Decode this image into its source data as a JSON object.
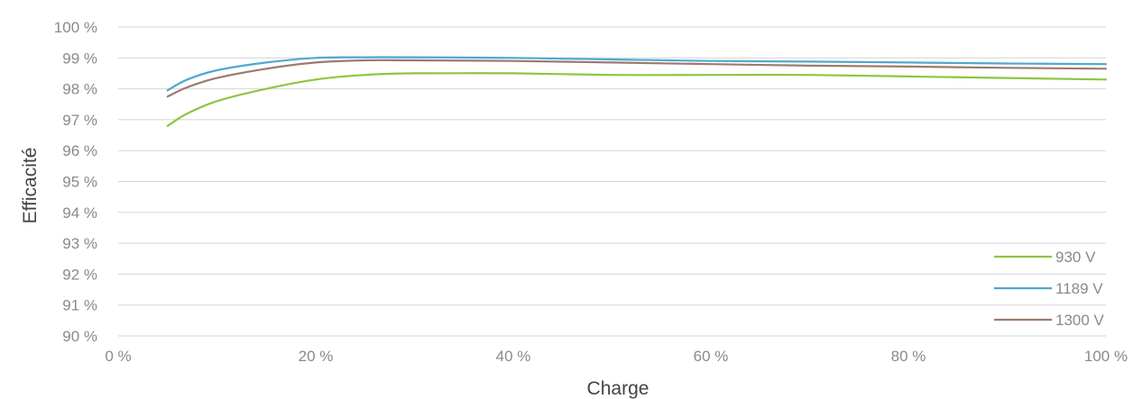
{
  "chart_data": {
    "type": "line",
    "xlabel": "Charge",
    "ylabel": "Efficacité",
    "xlim": [
      0,
      100
    ],
    "ylim": [
      90,
      100
    ],
    "x_ticks": [
      "0 %",
      "20 %",
      "40 %",
      "60 %",
      "80 %",
      "100 %"
    ],
    "y_ticks": [
      "90 %",
      "91 %",
      "92 %",
      "93 %",
      "94 %",
      "95 %",
      "96 %",
      "97 %",
      "98 %",
      "99 %",
      "100 %"
    ],
    "grid": "horizontal",
    "legend_position": "bottom-right",
    "series": [
      {
        "name": "930 V",
        "color": "#8dc641",
        "x": [
          5,
          7,
          10,
          15,
          20,
          25,
          30,
          40,
          50,
          60,
          70,
          80,
          90,
          100
        ],
        "y": [
          96.8,
          97.2,
          97.6,
          98.0,
          98.3,
          98.45,
          98.5,
          98.5,
          98.45,
          98.45,
          98.45,
          98.4,
          98.35,
          98.3
        ]
      },
      {
        "name": "1189 V",
        "color": "#4fa8d0",
        "x": [
          5,
          7,
          10,
          15,
          20,
          25,
          30,
          40,
          50,
          60,
          70,
          80,
          90,
          100
        ],
        "y": [
          97.95,
          98.3,
          98.6,
          98.85,
          99.0,
          99.02,
          99.02,
          99.0,
          98.95,
          98.9,
          98.88,
          98.85,
          98.82,
          98.8
        ]
      },
      {
        "name": "1300 V",
        "color": "#9b7a6e",
        "x": [
          5,
          7,
          10,
          15,
          20,
          25,
          30,
          40,
          50,
          60,
          70,
          80,
          90,
          100
        ],
        "y": [
          97.75,
          98.05,
          98.35,
          98.65,
          98.85,
          98.92,
          98.92,
          98.9,
          98.85,
          98.8,
          98.75,
          98.72,
          98.68,
          98.65
        ]
      }
    ]
  }
}
